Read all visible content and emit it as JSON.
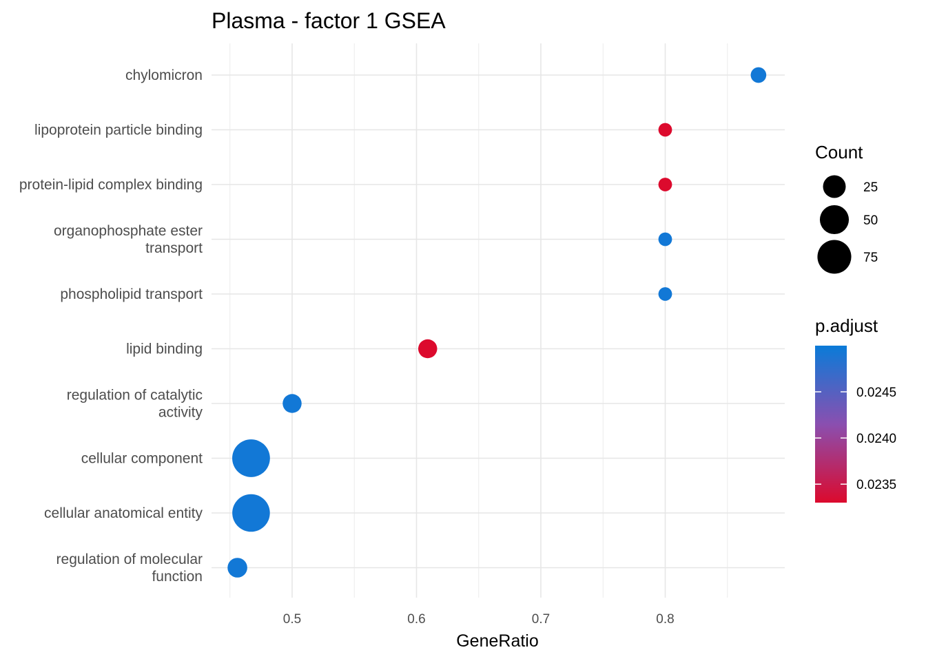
{
  "chart_data": {
    "type": "scatter",
    "title": "Plasma - factor 1 GSEA",
    "xlabel": "GeneRatio",
    "ylabel": "",
    "xlim": [
      0.45,
      0.875
    ],
    "x_ticks": [
      "0.5",
      "0.6",
      "0.7",
      "0.8"
    ],
    "grid": true,
    "legend_position": "right",
    "categories": [
      "chylomicron",
      "lipoprotein particle binding",
      "protein-lipid complex binding",
      "organophosphate ester\ntransport",
      "phospholipid transport",
      "lipid binding",
      "regulation of catalytic\nactivity",
      "cellular component",
      "cellular anatomical entity",
      "regulation of molecular\nfunction"
    ],
    "points": [
      {
        "category": "chylomicron",
        "x": 0.875,
        "count": 7,
        "p_adjust": 0.02495
      },
      {
        "category": "lipoprotein particle binding",
        "x": 0.8,
        "count": 4,
        "p_adjust": 0.0233
      },
      {
        "category": "protein-lipid complex binding",
        "x": 0.8,
        "count": 4,
        "p_adjust": 0.0233
      },
      {
        "category": "organophosphate ester\ntransport",
        "x": 0.8,
        "count": 4,
        "p_adjust": 0.02495
      },
      {
        "category": "phospholipid transport",
        "x": 0.8,
        "count": 4,
        "p_adjust": 0.02495
      },
      {
        "category": "lipid binding",
        "x": 0.609,
        "count": 14,
        "p_adjust": 0.0233
      },
      {
        "category": "regulation of catalytic\nactivity",
        "x": 0.5,
        "count": 14,
        "p_adjust": 0.02495
      },
      {
        "category": "cellular component",
        "x": 0.467,
        "count": 99,
        "p_adjust": 0.02495
      },
      {
        "category": "cellular anatomical entity",
        "x": 0.467,
        "count": 98,
        "p_adjust": 0.02495
      },
      {
        "category": "regulation of molecular\nfunction",
        "x": 0.456,
        "count": 16,
        "p_adjust": 0.02495
      }
    ],
    "size_legend": {
      "title": "Count",
      "labels": [
        "25",
        "50",
        "75"
      ],
      "values": [
        25,
        50,
        75
      ]
    },
    "color_legend": {
      "title": "p.adjust",
      "labels": [
        "0.0245",
        "0.0240",
        "0.0235"
      ],
      "values": [
        0.0245,
        0.024,
        0.0235
      ],
      "range": [
        0.0233,
        0.025
      ],
      "low_color": "#dc0a2d",
      "high_color": "#0a7bd8"
    }
  }
}
